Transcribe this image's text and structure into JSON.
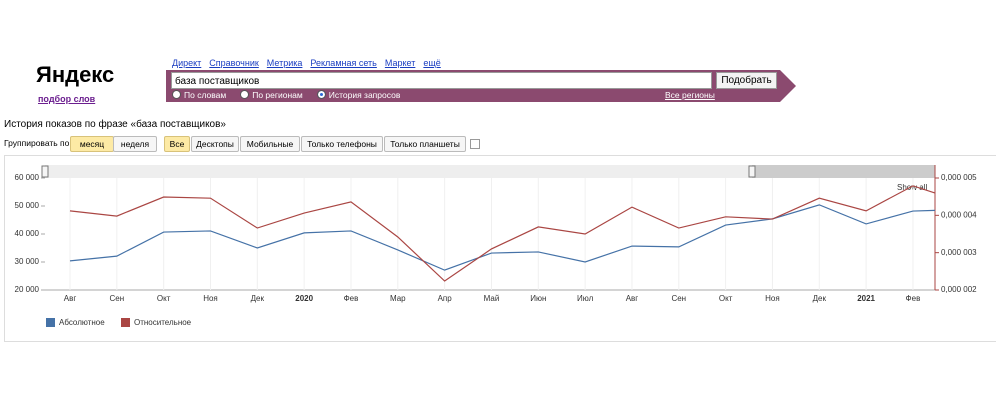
{
  "header": {
    "logo": "Яндекс",
    "subtitle": "подбор слов",
    "links": [
      "Директ",
      "Справочник",
      "Метрика",
      "Рекламная сеть",
      "Маркет",
      "ещё"
    ]
  },
  "search": {
    "query": "база поставщиков",
    "button": "Подобрать",
    "modes": [
      "По словам",
      "По регионам",
      "История запросов"
    ],
    "regions": "Все регионы"
  },
  "heading": "История показов по фразе «база поставщиков»",
  "group": {
    "label": "Группировать по:",
    "periods": [
      "месяц",
      "неделя"
    ],
    "devices": [
      "Все",
      "Десктопы",
      "Мобильные",
      "Только телефоны",
      "Только планшеты"
    ]
  },
  "chart_data": {
    "type": "line",
    "show_all": "Show all",
    "categories": [
      "Авг",
      "Сен",
      "Окт",
      "Ноя",
      "Дек",
      "2020",
      "Фев",
      "Мар",
      "Апр",
      "Май",
      "Июн",
      "Июл",
      "Авг",
      "Сен",
      "Окт",
      "Ноя",
      "Дек",
      "2021",
      "Фев",
      null
    ],
    "series": [
      {
        "name": "Абсолютное",
        "color": "#4572a7",
        "values": [
          30400,
          32100,
          40700,
          41100,
          35000,
          40400,
          41100,
          34300,
          27100,
          33200,
          33600,
          30000,
          35700,
          35400,
          43200,
          45400,
          50400,
          43600,
          48200,
          48700
        ]
      },
      {
        "name": "Относительное",
        "color": "#aa4643",
        "axis": "y2",
        "values": [
          4.12e-06,
          3.98e-06,
          4.49e-06,
          4.46e-06,
          3.66e-06,
          4.06e-06,
          4.36e-06,
          3.42e-06,
          2.24e-06,
          3.1e-06,
          3.69e-06,
          3.5e-06,
          4.22e-06,
          3.66e-06,
          3.96e-06,
          3.9e-06,
          4.46e-06,
          4.12e-06,
          4.79e-06,
          4.38e-06
        ]
      }
    ],
    "ylim": [
      20000,
      60000
    ],
    "yticks": [
      {
        "value": 20000,
        "label": "20 000"
      },
      {
        "value": 30000,
        "label": "30 000"
      },
      {
        "value": 40000,
        "label": "40 000"
      },
      {
        "value": 50000,
        "label": "50 000"
      },
      {
        "value": 60000,
        "label": "60 000"
      }
    ],
    "y2lim": [
      2e-06,
      5e-06
    ],
    "y2ticks": [
      {
        "value": 2e-06,
        "label": "0,000 002"
      },
      {
        "value": 3e-06,
        "label": "0,000 003"
      },
      {
        "value": 4e-06,
        "label": "0,000 004"
      },
      {
        "value": 5e-06,
        "label": "0,000 005"
      }
    ]
  }
}
